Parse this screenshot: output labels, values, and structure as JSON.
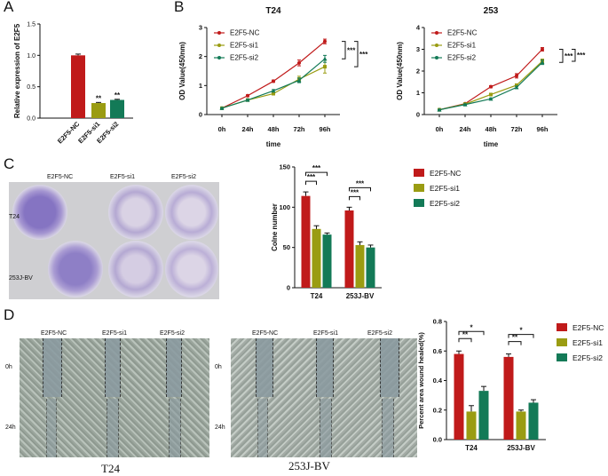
{
  "panels": {
    "a": "A",
    "b": "B",
    "c": "C",
    "d": "D"
  },
  "colors": {
    "nc": "#c01a1a",
    "si1": "#9a9c12",
    "si2": "#137a57",
    "axis": "#111111"
  },
  "panelA": {
    "chart_data": {
      "type": "bar",
      "ylabel": "Relative expression of E2F5",
      "categories": [
        "E2F5-NC",
        "E2F5-si1",
        "E2F5-si2"
      ],
      "values": [
        1.0,
        0.24,
        0.29
      ],
      "errors": [
        0.02,
        0.01,
        0.01
      ],
      "ylim": [
        0,
        1.5
      ],
      "yticks": [
        "0.0",
        "0.5",
        "1.0",
        "1.5"
      ],
      "sig": [
        "",
        "**",
        "**"
      ]
    }
  },
  "panelB": {
    "chart_data": [
      {
        "type": "line",
        "title": "T24",
        "xlabel": "time",
        "ylabel": "OD Value(450nm)",
        "categories": [
          "0h",
          "24h",
          "48h",
          "72h",
          "96h"
        ],
        "ylim": [
          0,
          3
        ],
        "yticks": [
          "0",
          "1",
          "2",
          "3"
        ],
        "legend": [
          "E2F5-NC",
          "E2F5-si1",
          "E2F5-si2"
        ],
        "series": [
          {
            "name": "E2F5-NC",
            "values": [
              0.22,
              0.65,
              1.15,
              1.78,
              2.52
            ],
            "errors": [
              0.02,
              0.03,
              0.04,
              0.1,
              0.08
            ]
          },
          {
            "name": "E2F5-si1",
            "values": [
              0.22,
              0.5,
              0.72,
              1.22,
              1.65
            ],
            "errors": [
              0.02,
              0.03,
              0.04,
              0.1,
              0.22
            ]
          },
          {
            "name": "E2F5-si2",
            "values": [
              0.22,
              0.5,
              0.82,
              1.18,
              1.92
            ],
            "errors": [
              0.02,
              0.03,
              0.04,
              0.08,
              0.12
            ]
          }
        ],
        "sig": [
          "***",
          "***"
        ]
      },
      {
        "type": "line",
        "title": "253",
        "xlabel": "time",
        "ylabel": "OD Value(450nm)",
        "categories": [
          "0h",
          "24h",
          "48h",
          "72h",
          "96h"
        ],
        "ylim": [
          0,
          4
        ],
        "yticks": [
          "0",
          "1",
          "2",
          "3",
          "4"
        ],
        "legend": [
          "E2F5-NC",
          "E2F5-si1",
          "E2F5-si2"
        ],
        "series": [
          {
            "name": "E2F5-NC",
            "values": [
              0.22,
              0.5,
              1.28,
              1.78,
              3.0
            ],
            "errors": [
              0.02,
              0.03,
              0.05,
              0.1,
              0.08
            ]
          },
          {
            "name": "E2F5-si1",
            "values": [
              0.22,
              0.48,
              0.92,
              1.35,
              2.45
            ],
            "errors": [
              0.02,
              0.03,
              0.04,
              0.06,
              0.1
            ]
          },
          {
            "name": "E2F5-si2",
            "values": [
              0.22,
              0.46,
              0.72,
              1.25,
              2.4
            ],
            "errors": [
              0.02,
              0.03,
              0.04,
              0.06,
              0.1
            ]
          }
        ],
        "sig": [
          "***",
          "***"
        ]
      }
    ]
  },
  "panelC": {
    "photo": {
      "cols": [
        "E2F5-NC",
        "E2F5-si1",
        "E2F5-si2"
      ],
      "rows": [
        "T24",
        "253J-BV"
      ]
    },
    "chart_data": {
      "type": "bar",
      "ylabel": "Colne number",
      "categories": [
        "T24",
        "253J-BV"
      ],
      "ylim": [
        0,
        150
      ],
      "yticks": [
        "0",
        "50",
        "100",
        "150"
      ],
      "series": [
        {
          "name": "E2F5-NC",
          "values": [
            114,
            96
          ],
          "errors": [
            5,
            4
          ]
        },
        {
          "name": "E2F5-si1",
          "values": [
            73,
            53
          ],
          "errors": [
            4,
            4
          ]
        },
        {
          "name": "E2F5-si2",
          "values": [
            66,
            50
          ],
          "errors": [
            2,
            3
          ]
        }
      ],
      "sig": [
        "***",
        "***",
        "***",
        "***"
      ]
    }
  },
  "panelD": {
    "photoLeft": {
      "cols": [
        "E2F5-NC",
        "E2F5-si1",
        "E2F5-si2"
      ],
      "rows": [
        "0h",
        "24h"
      ],
      "caption": "T24"
    },
    "photoRight": {
      "cols": [
        "E2F5-NC",
        "E2F5-si1",
        "E2F5-si2"
      ],
      "rows": [
        "0h",
        "24h"
      ],
      "caption": "253J-BV"
    },
    "chart_data": {
      "type": "bar",
      "ylabel": "Percent area wound healed(%)",
      "categories": [
        "T24",
        "253J-BV"
      ],
      "ylim": [
        0,
        0.8
      ],
      "yticks": [
        "0.0",
        "0.2",
        "0.4",
        "0.6",
        "0.8"
      ],
      "series": [
        {
          "name": "E2F5-NC",
          "values": [
            0.58,
            0.56
          ],
          "errors": [
            0.02,
            0.02
          ]
        },
        {
          "name": "E2F5-si1",
          "values": [
            0.19,
            0.19
          ],
          "errors": [
            0.04,
            0.01
          ]
        },
        {
          "name": "E2F5-si2",
          "values": [
            0.33,
            0.25
          ],
          "errors": [
            0.03,
            0.02
          ]
        }
      ],
      "sig": [
        "**",
        "*",
        "**",
        "*"
      ]
    }
  }
}
